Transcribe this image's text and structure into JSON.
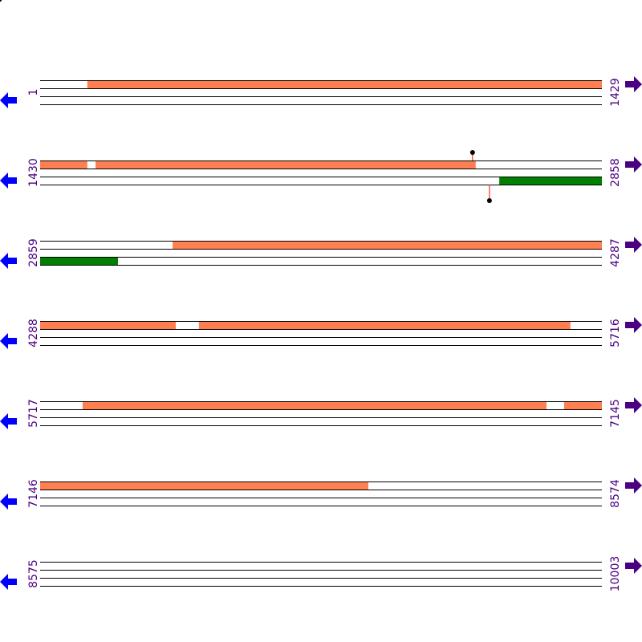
{
  "map": {
    "row_length_bp": 1429,
    "rows": [
      {
        "start": "1",
        "end": "1429"
      },
      {
        "start": "1430",
        "end": "2858"
      },
      {
        "start": "2859",
        "end": "4287"
      },
      {
        "start": "4288",
        "end": "5716"
      },
      {
        "start": "5717",
        "end": "7145"
      },
      {
        "start": "7146",
        "end": "8574"
      },
      {
        "start": "8575",
        "end": "10003"
      }
    ],
    "features": [
      {
        "strand": "forward",
        "from": 121,
        "to": 1550,
        "color": "#ff7f50"
      },
      {
        "strand": "forward",
        "from": 1571,
        "to": 2538,
        "color": "#ff7f50"
      },
      {
        "strand": "forward",
        "from": 3196,
        "to": 4633,
        "color": "#ff7f50"
      },
      {
        "strand": "forward",
        "from": 4692,
        "to": 5637,
        "color": "#ff7f50"
      },
      {
        "strand": "forward",
        "from": 5825,
        "to": 7005,
        "color": "#ff7f50"
      },
      {
        "strand": "forward",
        "from": 7050,
        "to": 7981,
        "color": "#ff7f50"
      },
      {
        "strand": "reverse",
        "from": 2598,
        "to": 3057,
        "color": "#008000"
      }
    ],
    "sites": [
      {
        "strand": "forward",
        "position": 2530
      },
      {
        "strand": "reverse",
        "position": 2573
      }
    ],
    "colors": {
      "label": "#4b0082",
      "left_arrow": "#0000ff",
      "right_arrow": "#4b0082",
      "site_line": "#ff0000"
    },
    "icons": {
      "left": "arrow-left-icon",
      "right": "arrow-right-icon"
    }
  }
}
